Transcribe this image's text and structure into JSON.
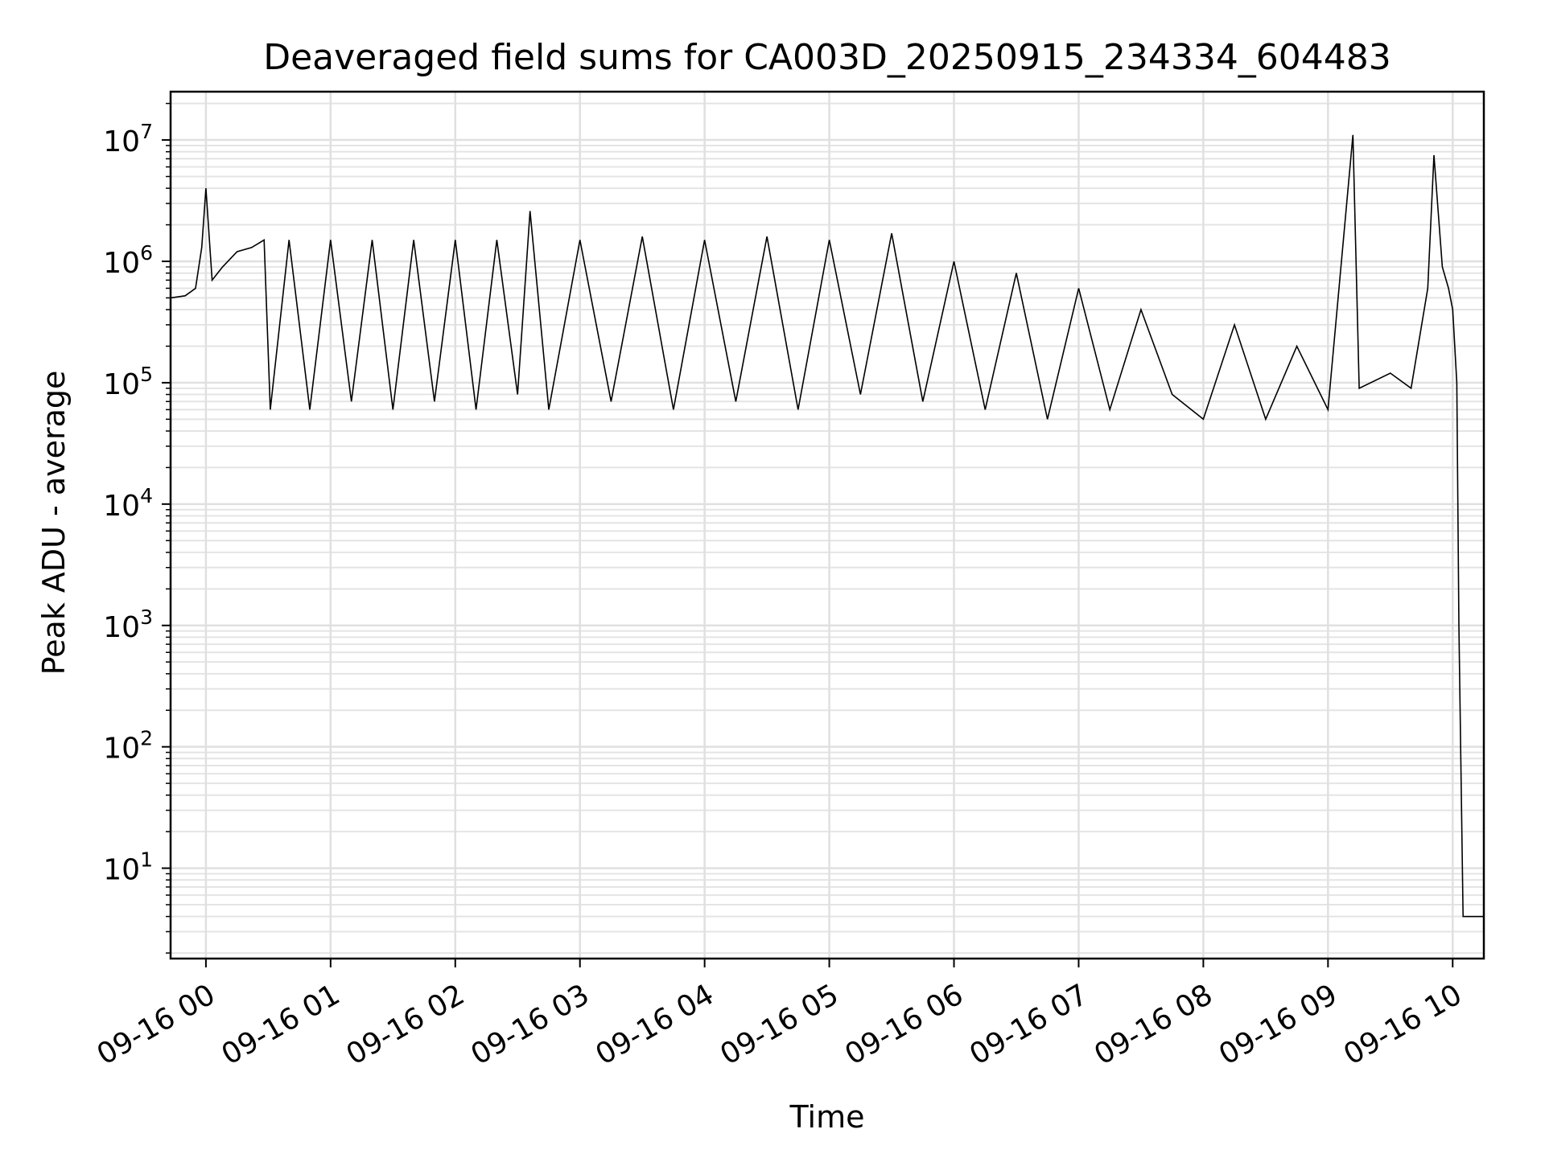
{
  "chart_data": {
    "type": "line",
    "title": "Deaveraged field sums for CA003D_20250915_234334_604483",
    "xlabel": "Time",
    "ylabel": "Peak ADU - average",
    "yscale": "log",
    "ylim": [
      1.8,
      25000000
    ],
    "xlim": [
      "2025-09-15 23:43:00",
      "2025-09-16 10:15:00"
    ],
    "grid": "major and minor",
    "line_color": "#000000",
    "x_ticks": [
      {
        "value": "2025-09-16 00:00",
        "label": "09-16 00"
      },
      {
        "value": "2025-09-16 01:00",
        "label": "09-16 01"
      },
      {
        "value": "2025-09-16 02:00",
        "label": "09-16 02"
      },
      {
        "value": "2025-09-16 03:00",
        "label": "09-16 03"
      },
      {
        "value": "2025-09-16 04:00",
        "label": "09-16 04"
      },
      {
        "value": "2025-09-16 05:00",
        "label": "09-16 05"
      },
      {
        "value": "2025-09-16 06:00",
        "label": "09-16 06"
      },
      {
        "value": "2025-09-16 07:00",
        "label": "09-16 07"
      },
      {
        "value": "2025-09-16 08:00",
        "label": "09-16 08"
      },
      {
        "value": "2025-09-16 09:00",
        "label": "09-16 09"
      },
      {
        "value": "2025-09-16 10:00",
        "label": "09-16 10"
      }
    ],
    "y_ticks": [
      {
        "value": 10,
        "base": "10",
        "exp": "1"
      },
      {
        "value": 100,
        "base": "10",
        "exp": "2"
      },
      {
        "value": 1000,
        "base": "10",
        "exp": "3"
      },
      {
        "value": 10000,
        "base": "10",
        "exp": "4"
      },
      {
        "value": 100000,
        "base": "10",
        "exp": "5"
      },
      {
        "value": 1000000,
        "base": "10",
        "exp": "6"
      },
      {
        "value": 10000000,
        "base": "10",
        "exp": "7"
      }
    ],
    "series": [
      {
        "x": [
          "2025-09-15 23:43",
          "2025-09-15 23:50",
          "2025-09-15 23:55",
          "2025-09-15 23:58",
          "2025-09-16 00:00",
          "2025-09-16 00:03",
          "2025-09-16 00:08",
          "2025-09-16 00:15",
          "2025-09-16 00:22",
          "2025-09-16 00:28",
          "2025-09-16 00:31",
          "2025-09-16 00:40",
          "2025-09-16 00:50",
          "2025-09-16 01:00",
          "2025-09-16 01:10",
          "2025-09-16 01:20",
          "2025-09-16 01:30",
          "2025-09-16 01:40",
          "2025-09-16 01:50",
          "2025-09-16 02:00",
          "2025-09-16 02:10",
          "2025-09-16 02:20",
          "2025-09-16 02:30",
          "2025-09-16 02:36",
          "2025-09-16 02:45",
          "2025-09-16 03:00",
          "2025-09-16 03:15",
          "2025-09-16 03:30",
          "2025-09-16 03:45",
          "2025-09-16 04:00",
          "2025-09-16 04:15",
          "2025-09-16 04:30",
          "2025-09-16 04:45",
          "2025-09-16 05:00",
          "2025-09-16 05:15",
          "2025-09-16 05:30",
          "2025-09-16 05:45",
          "2025-09-16 06:00",
          "2025-09-16 06:15",
          "2025-09-16 06:30",
          "2025-09-16 06:45",
          "2025-09-16 07:00",
          "2025-09-16 07:15",
          "2025-09-16 07:30",
          "2025-09-16 07:45",
          "2025-09-16 08:00",
          "2025-09-16 08:15",
          "2025-09-16 08:30",
          "2025-09-16 08:45",
          "2025-09-16 09:00",
          "2025-09-16 09:12",
          "2025-09-16 09:15",
          "2025-09-16 09:30",
          "2025-09-16 09:40",
          "2025-09-16 09:48",
          "2025-09-16 09:51",
          "2025-09-16 09:55",
          "2025-09-16 09:58",
          "2025-09-16 10:00",
          "2025-09-16 10:02",
          "2025-09-16 10:03",
          "2025-09-16 10:05",
          "2025-09-16 10:10",
          "2025-09-16 10:15"
        ],
        "y": [
          500000,
          520000,
          600000,
          1300000,
          4000000,
          700000,
          900000,
          1200000,
          1300000,
          1500000,
          60000,
          1500000,
          60000,
          1500000,
          70000,
          1500000,
          60000,
          1500000,
          70000,
          1500000,
          60000,
          1500000,
          80000,
          2600000,
          60000,
          1500000,
          70000,
          1600000,
          60000,
          1500000,
          70000,
          1600000,
          60000,
          1500000,
          80000,
          1700000,
          70000,
          1000000,
          60000,
          800000,
          50000,
          600000,
          60000,
          400000,
          80000,
          50000,
          300000,
          50000,
          200000,
          60000,
          11000000,
          90000,
          120000,
          90000,
          600000,
          7500000,
          900000,
          600000,
          400000,
          100000,
          1000,
          4,
          4,
          4
        ]
      }
    ]
  }
}
